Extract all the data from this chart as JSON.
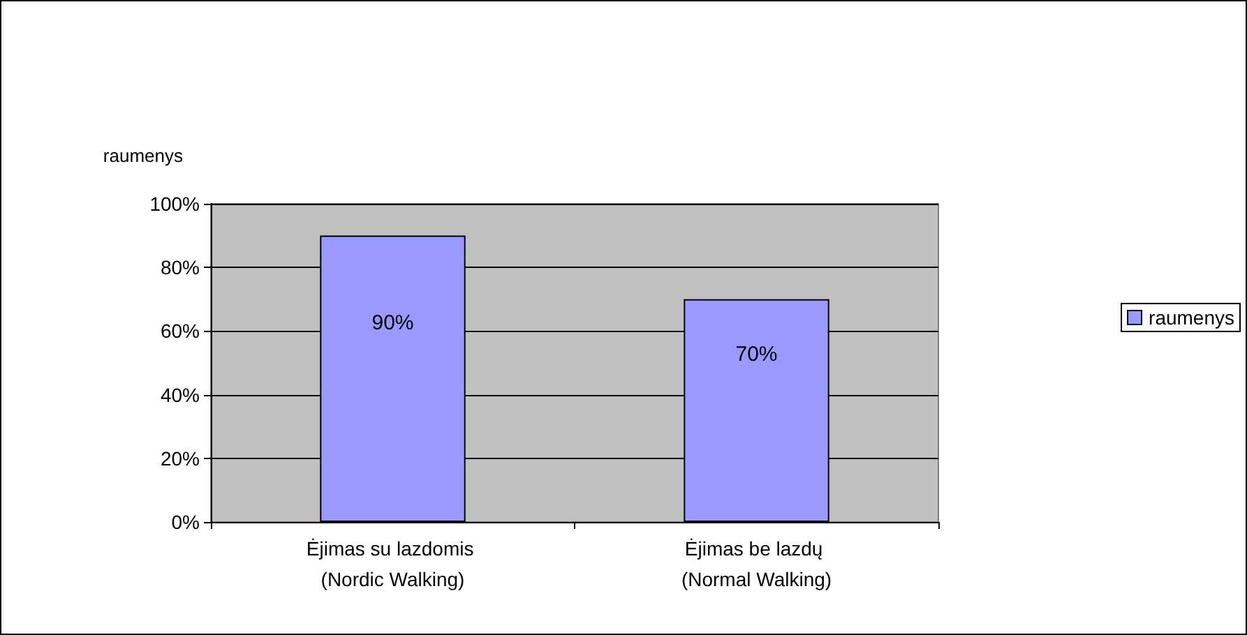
{
  "chart_data": {
    "type": "bar",
    "ylabel": "raumenys",
    "categories": [
      "Ėjimas su lazdomis (Nordic Walking)",
      "Ėjimas be lazdų (Normal Walking)"
    ],
    "series": [
      {
        "name": "raumenys",
        "color": "#9999ff",
        "values": [
          90,
          70
        ],
        "value_labels": [
          "90%",
          "70%"
        ]
      }
    ],
    "ylim": [
      0,
      100
    ],
    "yticks": [
      {
        "value": 0,
        "label": "0%"
      },
      {
        "value": 20,
        "label": "20%"
      },
      {
        "value": 40,
        "label": "40%"
      },
      {
        "value": 60,
        "label": "60%"
      },
      {
        "value": 80,
        "label": "80%"
      },
      {
        "value": 100,
        "label": "100%"
      }
    ],
    "grid": "y",
    "legend": "right"
  }
}
